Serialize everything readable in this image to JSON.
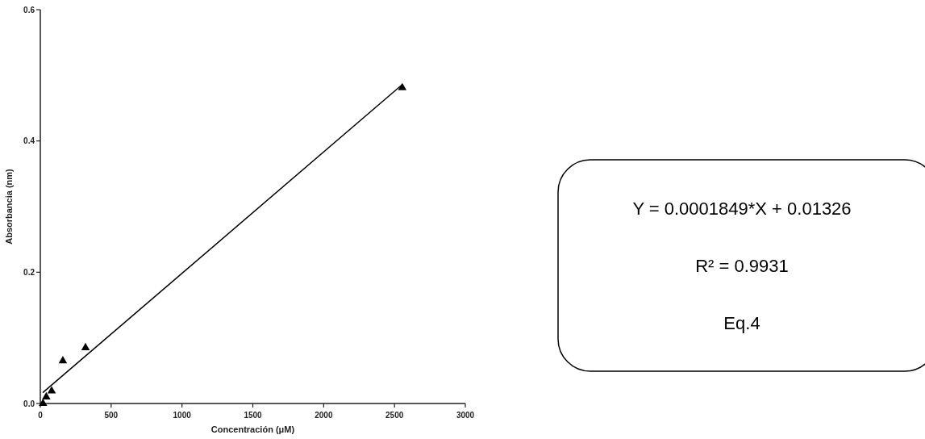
{
  "chart_data": {
    "type": "scatter",
    "xlabel": "Concentración (μM)",
    "ylabel": "Absorbancia (nm)",
    "xlim": [
      0,
      3000
    ],
    "ylim": [
      0,
      0.6
    ],
    "xticks": [
      0,
      500,
      1000,
      1500,
      2000,
      2500,
      3000
    ],
    "yticks": [
      {
        "value": 0,
        "label": "0.0"
      },
      0.2,
      0.4,
      0.6
    ],
    "marker": "triangle",
    "grid": false,
    "series": [
      {
        "color": "#000000",
        "x": [
          19,
          42,
          80,
          159,
          319,
          2555
        ],
        "values": [
          0,
          0.01,
          0.019,
          0.065,
          0.085,
          0.481
        ]
      },
      {
        "type": "line",
        "color": "#000000",
        "marker": "none",
        "x": [
          20,
          2555
        ],
        "values": [
          0.017,
          0.486
        ]
      }
    ],
    "annotations": [
      "Y = 0.0001849*X + 0.01326",
      "R² = 0.9931",
      "Eq.4"
    ]
  }
}
